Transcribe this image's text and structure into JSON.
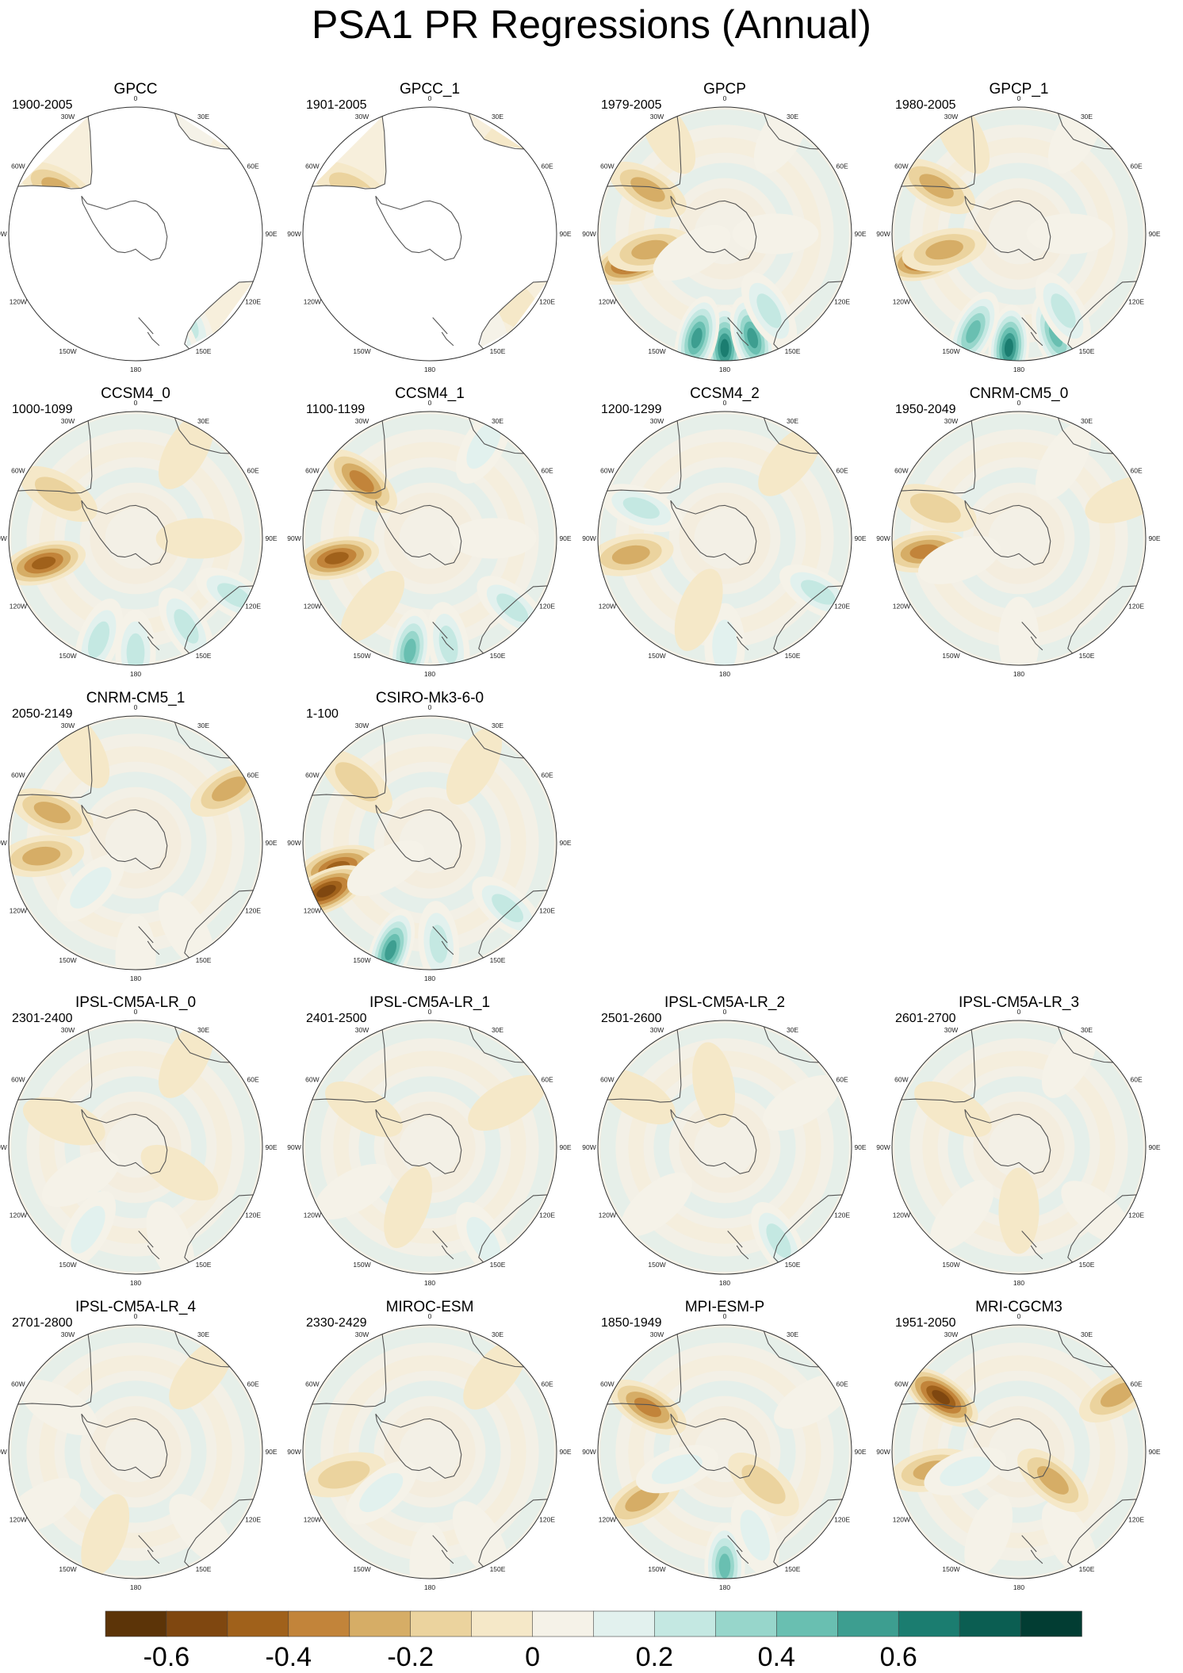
{
  "title": "PSA1 PR Regressions (Annual)",
  "longitude_labels": [
    "0",
    "30E",
    "60E",
    "90E",
    "120E",
    "150E",
    "180",
    "150W",
    "120W",
    "90W",
    "60W",
    "30W"
  ],
  "chart_data": {
    "type": "heatmap",
    "projection": "south polar stereographic",
    "variable": "PR regression onto PSA1",
    "season": "Annual",
    "colorbar": {
      "colors": [
        "#5c3408",
        "#7f4710",
        "#a0611b",
        "#c2843a",
        "#d6ad66",
        "#ebd39e",
        "#f5e8c8",
        "#f5f2e8",
        "#e2f1ee",
        "#c4e8e2",
        "#97d6cb",
        "#69bfb1",
        "#3d9e90",
        "#1b7d70",
        "#0b5e52",
        "#023d33"
      ],
      "tick_labels": [
        "-0.6",
        "-0.4",
        "-0.2",
        "0",
        "0.2",
        "0.4",
        "0.6"
      ],
      "tick_values": [
        -0.6,
        -0.4,
        -0.2,
        0,
        0.2,
        0.4,
        0.6
      ]
    },
    "panels": [
      {
        "name": "GPCC",
        "period": "1900-2005",
        "coverage": "land",
        "blobs": [
          [
            300,
            0.7,
            -0.3
          ],
          [
            105,
            0.8,
            0.2
          ],
          [
            150,
            0.8,
            0.3
          ],
          [
            30,
            0.9,
            0.15
          ],
          [
            160,
            0.95,
            0.3
          ]
        ]
      },
      {
        "name": "GPCC_1",
        "period": "1901-2005",
        "coverage": "land",
        "blobs": [
          [
            300,
            0.7,
            -0.2
          ],
          [
            130,
            0.8,
            -0.1
          ],
          [
            40,
            0.9,
            -0.1
          ],
          [
            150,
            0.8,
            0.15
          ]
        ]
      },
      {
        "name": "GPCP",
        "period": "1979-2005",
        "coverage": "full",
        "blobs": [
          [
            253,
            0.75,
            -0.6
          ],
          [
            258,
            0.6,
            -0.3
          ],
          [
            180,
            0.9,
            0.65
          ],
          [
            165,
            0.85,
            0.55
          ],
          [
            195,
            0.85,
            0.55
          ],
          [
            150,
            0.7,
            0.25
          ],
          [
            300,
            0.7,
            -0.25
          ],
          [
            330,
            0.9,
            -0.15
          ],
          [
            30,
            0.9,
            0.15
          ],
          [
            90,
            0.4,
            0.1
          ],
          [
            240,
            0.3,
            0.1
          ]
        ]
      },
      {
        "name": "GPCP_1",
        "period": "1980-2005",
        "coverage": "full",
        "blobs": [
          [
            255,
            0.75,
            -0.55
          ],
          [
            258,
            0.6,
            -0.3
          ],
          [
            185,
            0.9,
            0.65
          ],
          [
            160,
            0.85,
            0.5
          ],
          [
            205,
            0.85,
            0.5
          ],
          [
            150,
            0.7,
            0.25
          ],
          [
            300,
            0.75,
            -0.3
          ],
          [
            330,
            0.9,
            -0.15
          ],
          [
            30,
            0.9,
            0.15
          ],
          [
            90,
            0.4,
            0.1
          ]
        ]
      },
      {
        "name": "CCSM4_0",
        "period": "1000-1099",
        "coverage": "full",
        "blobs": [
          [
            255,
            0.75,
            -0.45
          ],
          [
            180,
            0.9,
            0.3
          ],
          [
            150,
            0.8,
            0.3
          ],
          [
            200,
            0.85,
            0.25
          ],
          [
            120,
            0.9,
            0.25
          ],
          [
            300,
            0.7,
            -0.2
          ],
          [
            30,
            0.8,
            -0.15
          ],
          [
            90,
            0.5,
            -0.1
          ]
        ]
      },
      {
        "name": "CCSM4_1",
        "period": "1100-1199",
        "coverage": "full",
        "blobs": [
          [
            258,
            0.75,
            -0.45
          ],
          [
            310,
            0.7,
            -0.4
          ],
          [
            190,
            0.9,
            0.5
          ],
          [
            170,
            0.85,
            0.35
          ],
          [
            130,
            0.85,
            0.3
          ],
          [
            30,
            0.85,
            0.2
          ],
          [
            220,
            0.7,
            -0.15
          ],
          [
            90,
            0.5,
            0.1
          ]
        ]
      },
      {
        "name": "CCSM4_2",
        "period": "1200-1299",
        "coverage": "full",
        "blobs": [
          [
            260,
            0.75,
            -0.35
          ],
          [
            290,
            0.7,
            0.25
          ],
          [
            180,
            0.85,
            0.2
          ],
          [
            120,
            0.85,
            0.25
          ],
          [
            40,
            0.8,
            -0.15
          ],
          [
            200,
            0.6,
            -0.1
          ]
        ]
      },
      {
        "name": "CNRM-CM5_0",
        "period": "1950-2049",
        "coverage": "full",
        "blobs": [
          [
            262,
            0.75,
            -0.4
          ],
          [
            290,
            0.7,
            -0.2
          ],
          [
            250,
            0.5,
            0.15
          ],
          [
            180,
            0.8,
            0.15
          ],
          [
            70,
            0.9,
            -0.15
          ],
          [
            30,
            0.7,
            0.1
          ]
        ]
      },
      {
        "name": "CNRM-CM5_1",
        "period": "2050-2149",
        "coverage": "full",
        "blobs": [
          [
            262,
            0.75,
            -0.3
          ],
          [
            290,
            0.7,
            -0.25
          ],
          [
            225,
            0.5,
            0.2
          ],
          [
            60,
            0.85,
            -0.25
          ],
          [
            150,
            0.8,
            0.15
          ],
          [
            180,
            0.9,
            0.15
          ],
          [
            330,
            0.85,
            -0.1
          ]
        ]
      },
      {
        "name": "CSIRO-Mk3-6-0",
        "period": "1-100",
        "coverage": "full",
        "blobs": [
          [
            255,
            0.75,
            -0.5
          ],
          [
            245,
            0.9,
            -0.6
          ],
          [
            200,
            0.9,
            0.55
          ],
          [
            175,
            0.8,
            0.3
          ],
          [
            130,
            0.8,
            0.3
          ],
          [
            310,
            0.75,
            -0.2
          ],
          [
            30,
            0.7,
            -0.1
          ],
          [
            240,
            0.4,
            0.15
          ]
        ]
      },
      {
        "name": "IPSL-CM5A-LR_0",
        "period": "2301-2400",
        "coverage": "full",
        "blobs": [
          [
            210,
            0.75,
            0.2
          ],
          [
            160,
            0.8,
            0.15
          ],
          [
            290,
            0.6,
            -0.1
          ],
          [
            30,
            0.8,
            -0.1
          ],
          [
            120,
            0.4,
            -0.1
          ],
          [
            240,
            0.5,
            0.1
          ]
        ]
      },
      {
        "name": "IPSL-CM5A-LR_1",
        "period": "2401-2500",
        "coverage": "full",
        "blobs": [
          [
            150,
            0.85,
            0.2
          ],
          [
            240,
            0.7,
            0.15
          ],
          [
            300,
            0.6,
            -0.1
          ],
          [
            60,
            0.7,
            -0.1
          ],
          [
            200,
            0.5,
            -0.1
          ]
        ]
      },
      {
        "name": "IPSL-CM5A-LR_2",
        "period": "2501-2600",
        "coverage": "full",
        "blobs": [
          [
            150,
            0.85,
            0.25
          ],
          [
            230,
            0.7,
            0.12
          ],
          [
            300,
            0.8,
            -0.1
          ],
          [
            60,
            0.7,
            0.1
          ],
          [
            350,
            0.5,
            -0.1
          ]
        ]
      },
      {
        "name": "IPSL-CM5A-LR_3",
        "period": "2601-2700",
        "coverage": "full",
        "blobs": [
          [
            220,
            0.7,
            0.15
          ],
          [
            130,
            0.8,
            0.15
          ],
          [
            300,
            0.6,
            -0.12
          ],
          [
            30,
            0.8,
            0.1
          ],
          [
            180,
            0.5,
            -0.1
          ]
        ]
      },
      {
        "name": "IPSL-CM5A-LR_4",
        "period": "2701-2800",
        "coverage": "full",
        "blobs": [
          [
            200,
            0.7,
            -0.15
          ],
          [
            140,
            0.8,
            0.15
          ],
          [
            300,
            0.7,
            0.1
          ],
          [
            40,
            0.8,
            -0.1
          ],
          [
            240,
            0.85,
            0.1
          ]
        ]
      },
      {
        "name": "MIROC-ESM",
        "period": "2330-2429",
        "coverage": "full",
        "blobs": [
          [
            255,
            0.7,
            -0.2
          ],
          [
            230,
            0.5,
            0.2
          ],
          [
            150,
            0.8,
            0.15
          ],
          [
            40,
            0.8,
            -0.1
          ],
          [
            180,
            0.9,
            0.1
          ]
        ]
      },
      {
        "name": "MPI-ESM-P",
        "period": "1850-1949",
        "coverage": "full",
        "blobs": [
          [
            240,
            0.75,
            -0.35
          ],
          [
            300,
            0.7,
            -0.4
          ],
          [
            180,
            0.9,
            0.45
          ],
          [
            160,
            0.7,
            0.2
          ],
          [
            250,
            0.4,
            0.2
          ],
          [
            60,
            0.8,
            0.15
          ],
          [
            130,
            0.4,
            -0.2
          ]
        ]
      },
      {
        "name": "MRI-CGCM3",
        "period": "1951-2050",
        "coverage": "full",
        "blobs": [
          [
            258,
            0.7,
            -0.35
          ],
          [
            305,
            0.75,
            -0.55
          ],
          [
            250,
            0.45,
            0.2
          ],
          [
            60,
            0.9,
            -0.25
          ],
          [
            150,
            0.8,
            0.15
          ],
          [
            130,
            0.35,
            -0.25
          ],
          [
            200,
            0.7,
            0.1
          ]
        ]
      }
    ]
  }
}
